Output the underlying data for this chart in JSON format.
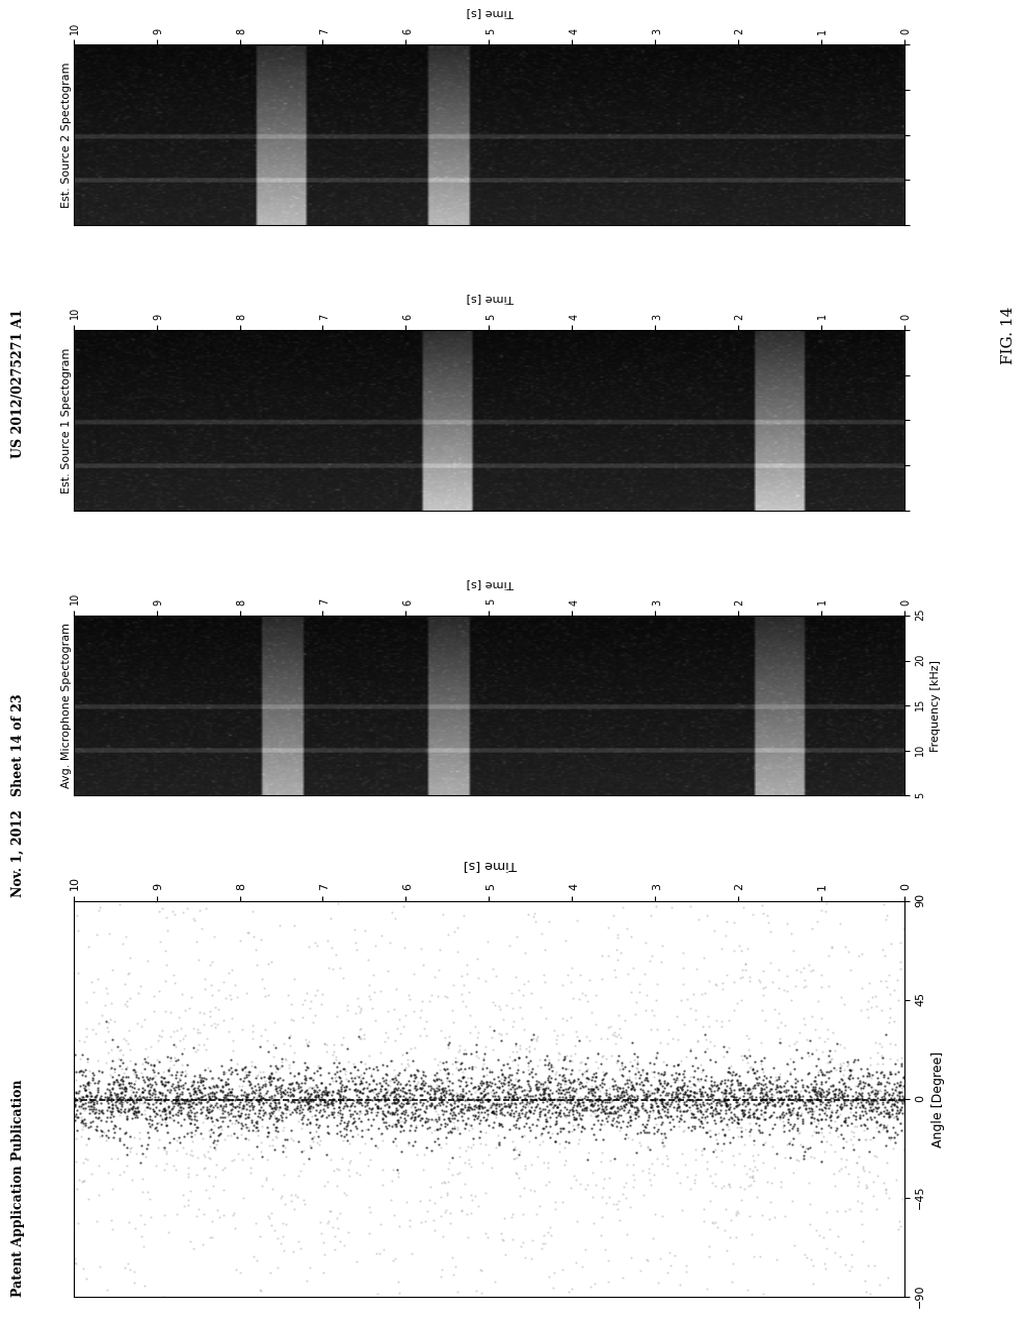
{
  "header_left": "Patent Application Publication",
  "header_mid": "Nov. 1, 2012   Sheet 14 of 23",
  "header_right": "US 2012/0275271 A1",
  "fig_label": "FIG. 14",
  "scatter_xlabel": "Time [s]",
  "scatter_ylabel": "Angle [Degree]",
  "scatter_xlim": [
    0,
    10
  ],
  "scatter_ylim": [
    -90,
    90
  ],
  "scatter_yticks": [
    -90,
    -45,
    0,
    45,
    90
  ],
  "scatter_xticks": [
    0,
    1,
    2,
    3,
    4,
    5,
    6,
    7,
    8,
    9,
    10
  ],
  "dashed_line_y": 0,
  "spec_titles": [
    "Avg. Microphone Spectogram",
    "Est. Source 1 Spectogram",
    "Est. Source 2 Spectogram"
  ],
  "spec_xlabel": "Time [s]",
  "spec_ylabel": "Frequency [kHz]",
  "spec_xlim": [
    0,
    10
  ],
  "spec_ylim": [
    5,
    25
  ],
  "spec_yticks": [
    5,
    10,
    15,
    20,
    25
  ],
  "spec_xticks": [
    0,
    1,
    2,
    3,
    4,
    5,
    6,
    7,
    8,
    9,
    10
  ],
  "background_color": "#ffffff"
}
